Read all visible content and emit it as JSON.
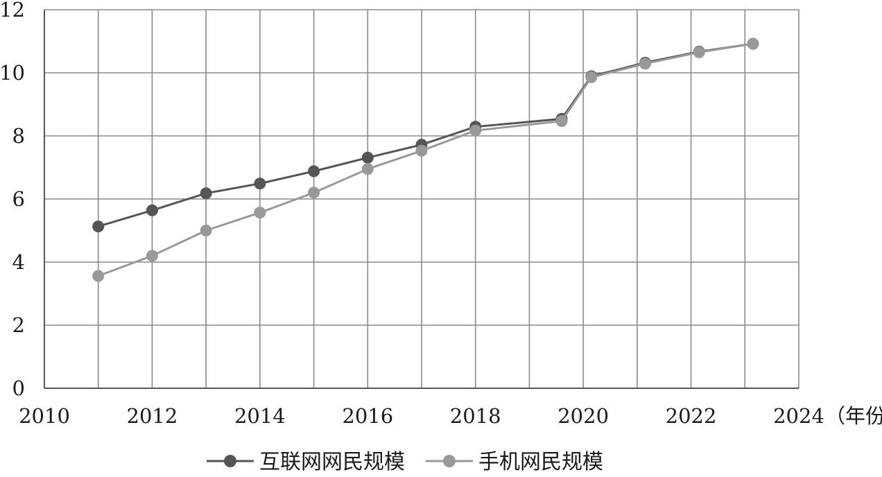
{
  "chart_data": {
    "type": "line",
    "title": "",
    "xlabel": "（年份）",
    "ylabel": "",
    "xlim": [
      2010,
      2024
    ],
    "ylim": [
      0,
      12
    ],
    "x_ticks": [
      "2010",
      "2012",
      "2014",
      "2016",
      "2018",
      "2020",
      "2022",
      "2024"
    ],
    "y_ticks": [
      "0",
      "2",
      "4",
      "6",
      "8",
      "10",
      "12"
    ],
    "grid": true,
    "legend_position": "bottom",
    "series": [
      {
        "name": "互联网网民规模",
        "color": "#555555",
        "points": [
          {
            "x": 2011.0,
            "y": 5.13
          },
          {
            "x": 2012.0,
            "y": 5.64
          },
          {
            "x": 2013.0,
            "y": 6.18
          },
          {
            "x": 2014.0,
            "y": 6.49
          },
          {
            "x": 2015.0,
            "y": 6.88
          },
          {
            "x": 2016.0,
            "y": 7.31
          },
          {
            "x": 2017.0,
            "y": 7.72
          },
          {
            "x": 2018.0,
            "y": 8.29
          },
          {
            "x": 2019.6,
            "y": 8.54
          },
          {
            "x": 2020.15,
            "y": 9.89
          },
          {
            "x": 2021.15,
            "y": 10.32
          },
          {
            "x": 2022.15,
            "y": 10.67
          },
          {
            "x": 2023.15,
            "y": 10.92
          }
        ]
      },
      {
        "name": "手机网民规模",
        "color": "#999999",
        "points": [
          {
            "x": 2011.0,
            "y": 3.56
          },
          {
            "x": 2012.0,
            "y": 4.2
          },
          {
            "x": 2013.0,
            "y": 5.0
          },
          {
            "x": 2014.0,
            "y": 5.57
          },
          {
            "x": 2015.0,
            "y": 6.2
          },
          {
            "x": 2016.0,
            "y": 6.95
          },
          {
            "x": 2017.0,
            "y": 7.53
          },
          {
            "x": 2018.0,
            "y": 8.17
          },
          {
            "x": 2019.6,
            "y": 8.47
          },
          {
            "x": 2020.15,
            "y": 9.86
          },
          {
            "x": 2021.15,
            "y": 10.29
          },
          {
            "x": 2022.15,
            "y": 10.65
          },
          {
            "x": 2023.15,
            "y": 10.92
          }
        ]
      }
    ]
  }
}
